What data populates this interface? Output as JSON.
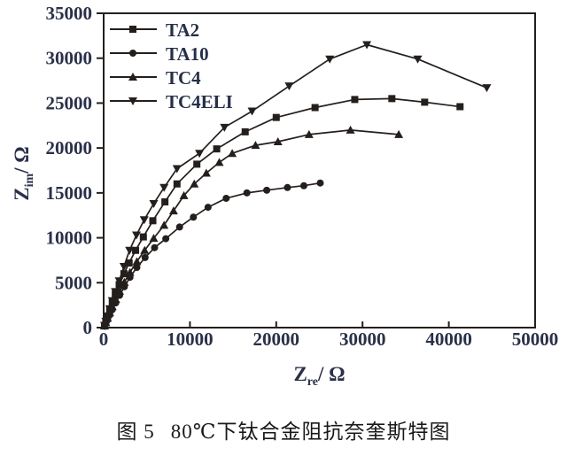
{
  "figure": {
    "caption_prefix": "图 5",
    "caption_text": "80℃下钛合金阻抗奈奎斯特图"
  },
  "chart_data": {
    "type": "scatter",
    "title": "",
    "xlabel": {
      "symbol": "Z",
      "subscript": "re",
      "suffix": "/ Ω"
    },
    "ylabel": {
      "symbol": "Z",
      "subscript": "im",
      "suffix": "/ Ω"
    },
    "xlim": [
      0,
      50000
    ],
    "ylim": [
      0,
      35000
    ],
    "x_ticks": [
      0,
      10000,
      20000,
      30000,
      40000,
      50000
    ],
    "y_ticks": [
      0,
      5000,
      10000,
      15000,
      20000,
      25000,
      30000,
      35000
    ],
    "grid": false,
    "legend_position": "top-left-inside",
    "colors": {
      "line": "#241f1c",
      "marker": "#241f1c",
      "axis": "#241f1c",
      "tick_text": "#2b3049",
      "axis_label_text": "#2b3049",
      "legend_text": "#273049",
      "caption_text": "#191919",
      "background": "#ffffff"
    },
    "series": [
      {
        "name": "TA2",
        "marker": "square",
        "points": [
          [
            100,
            200
          ],
          [
            250,
            600
          ],
          [
            450,
            1200
          ],
          [
            700,
            1950
          ],
          [
            1000,
            2800
          ],
          [
            1350,
            3750
          ],
          [
            1800,
            4800
          ],
          [
            2350,
            6000
          ],
          [
            2950,
            7200
          ],
          [
            3700,
            8600
          ],
          [
            4600,
            10100
          ],
          [
            5700,
            11900
          ],
          [
            7100,
            14000
          ],
          [
            8500,
            16000
          ],
          [
            10800,
            18200
          ],
          [
            13100,
            19900
          ],
          [
            16400,
            21800
          ],
          [
            20000,
            23400
          ],
          [
            24500,
            24500
          ],
          [
            29100,
            25400
          ],
          [
            33400,
            25500
          ],
          [
            37200,
            25100
          ],
          [
            41300,
            24600
          ]
        ]
      },
      {
        "name": "TA10",
        "marker": "circle",
        "points": [
          [
            100,
            150
          ],
          [
            250,
            450
          ],
          [
            450,
            850
          ],
          [
            700,
            1400
          ],
          [
            1000,
            2000
          ],
          [
            1400,
            2750
          ],
          [
            1850,
            3600
          ],
          [
            2400,
            4550
          ],
          [
            3050,
            5600
          ],
          [
            3850,
            6700
          ],
          [
            4800,
            7800
          ],
          [
            5900,
            8900
          ],
          [
            7200,
            9900
          ],
          [
            8800,
            11200
          ],
          [
            10400,
            12300
          ],
          [
            12100,
            13400
          ],
          [
            14200,
            14400
          ],
          [
            16600,
            15000
          ],
          [
            18900,
            15300
          ],
          [
            21300,
            15600
          ],
          [
            23200,
            15800
          ],
          [
            25100,
            16100
          ]
        ]
      },
      {
        "name": "TC4",
        "marker": "triangle-up",
        "points": [
          [
            100,
            180
          ],
          [
            250,
            550
          ],
          [
            450,
            1050
          ],
          [
            700,
            1650
          ],
          [
            1000,
            2350
          ],
          [
            1400,
            3150
          ],
          [
            1850,
            4050
          ],
          [
            2400,
            5050
          ],
          [
            3050,
            6150
          ],
          [
            3850,
            7350
          ],
          [
            4750,
            8600
          ],
          [
            5800,
            9950
          ],
          [
            7000,
            11400
          ],
          [
            8100,
            13000
          ],
          [
            9300,
            14700
          ],
          [
            10500,
            16000
          ],
          [
            11900,
            17200
          ],
          [
            13400,
            18400
          ],
          [
            14900,
            19400
          ],
          [
            17600,
            20300
          ],
          [
            20200,
            20700
          ],
          [
            23800,
            21500
          ],
          [
            28600,
            22000
          ],
          [
            34200,
            21500
          ]
        ]
      },
      {
        "name": "TC4ELI",
        "marker": "triangle-down",
        "points": [
          [
            100,
            250
          ],
          [
            250,
            700
          ],
          [
            450,
            1300
          ],
          [
            700,
            2100
          ],
          [
            1000,
            3000
          ],
          [
            1350,
            4000
          ],
          [
            1800,
            5200
          ],
          [
            2350,
            6800
          ],
          [
            3000,
            8600
          ],
          [
            3800,
            10300
          ],
          [
            4700,
            12000
          ],
          [
            5800,
            13800
          ],
          [
            7000,
            15600
          ],
          [
            8500,
            17700
          ],
          [
            11100,
            19400
          ],
          [
            14000,
            22300
          ],
          [
            17200,
            24100
          ],
          [
            21500,
            26900
          ],
          [
            26200,
            29900
          ],
          [
            30500,
            31500
          ],
          [
            36400,
            29900
          ],
          [
            44400,
            26700
          ]
        ]
      }
    ]
  }
}
